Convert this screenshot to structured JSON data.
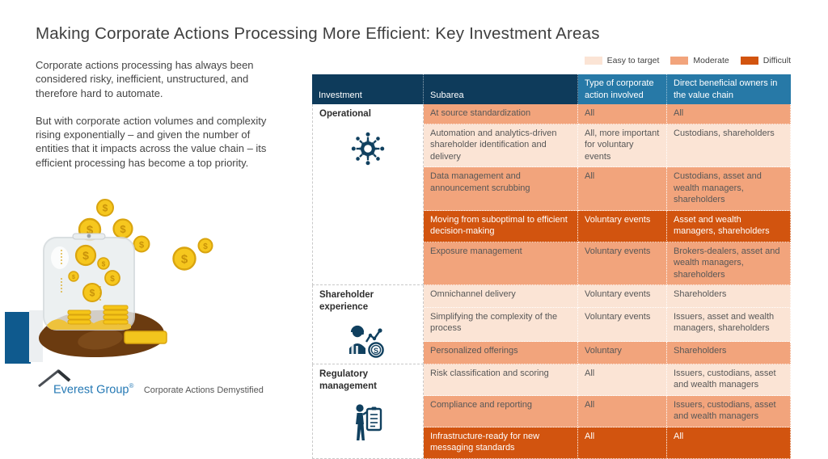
{
  "title": "Making Corporate Actions Processing More Efficient: Key Investment Areas",
  "intro": {
    "p1": "Corporate actions processing has always been considered risky, inefficient, unstructured, and therefore hard to automate.",
    "p2": "But with corporate action volumes and complexity rising exponentially – and given the number of entities that it impacts across the value chain – its efficient processing has become a top priority."
  },
  "legend": {
    "items": [
      {
        "label": "Easy to target",
        "color": "#fbe4d5"
      },
      {
        "label": "Moderate",
        "color": "#f2a47c"
      },
      {
        "label": "Difficult",
        "color": "#d2540f"
      }
    ]
  },
  "palette": {
    "header_dark": "#0e3b5b",
    "header_blue": "#2779a7",
    "icon_navy": "#10405f"
  },
  "table": {
    "headers": [
      "Investment",
      "Subarea",
      "Type of corporate action involved",
      "Direct beneficial owners in the value chain"
    ],
    "groups": [
      {
        "label": "Operational",
        "icon": "network-gear-icon",
        "rows": [
          {
            "subarea": "At source standardization",
            "type": "All",
            "owners": "All",
            "level": "moderate"
          },
          {
            "subarea": "Automation and analytics-driven shareholder identification and delivery",
            "type": "All, more important for voluntary events",
            "owners": "Custodians, shareholders",
            "level": "easy"
          },
          {
            "subarea": "Data management and announcement scrubbing",
            "type": "All",
            "owners": "Custodians, asset and wealth managers, shareholders",
            "level": "moderate"
          },
          {
            "subarea": "Moving from suboptimal to efficient decision-making",
            "type": "Voluntary events",
            "owners": "Asset and wealth managers, shareholders",
            "level": "difficult"
          },
          {
            "subarea": "Exposure management",
            "type": "Voluntary events",
            "owners": "Brokers-dealers, asset and wealth managers, shareholders",
            "level": "moderate"
          }
        ]
      },
      {
        "label": "Shareholder experience",
        "icon": "agent-chart-coin-icon",
        "rows": [
          {
            "subarea": "Omnichannel delivery",
            "type": "Voluntary events",
            "owners": "Shareholders",
            "level": "easy"
          },
          {
            "subarea": "Simplifying the complexity of the process",
            "type": "Voluntary events",
            "owners": "Issuers, asset and wealth managers, shareholders",
            "level": "easy"
          },
          {
            "subarea": "Personalized offerings",
            "type": "Voluntary",
            "owners": "Shareholders",
            "level": "moderate"
          }
        ]
      },
      {
        "label": "Regulatory management",
        "icon": "person-clipboard-icon",
        "rows": [
          {
            "subarea": "Risk classification and scoring",
            "type": "All",
            "owners": "Issuers, custodians, asset and wealth managers",
            "level": "easy"
          },
          {
            "subarea": "Compliance and reporting",
            "type": "All",
            "owners": "Issuers, custodians, asset and wealth managers",
            "level": "moderate"
          },
          {
            "subarea": "Infrastructure-ready for new messaging standards",
            "type": "All",
            "owners": "All",
            "level": "difficult"
          }
        ]
      }
    ]
  },
  "footer": {
    "brand": "Everest Group",
    "reg": "®",
    "tagline": "Corporate Actions Demystified"
  }
}
